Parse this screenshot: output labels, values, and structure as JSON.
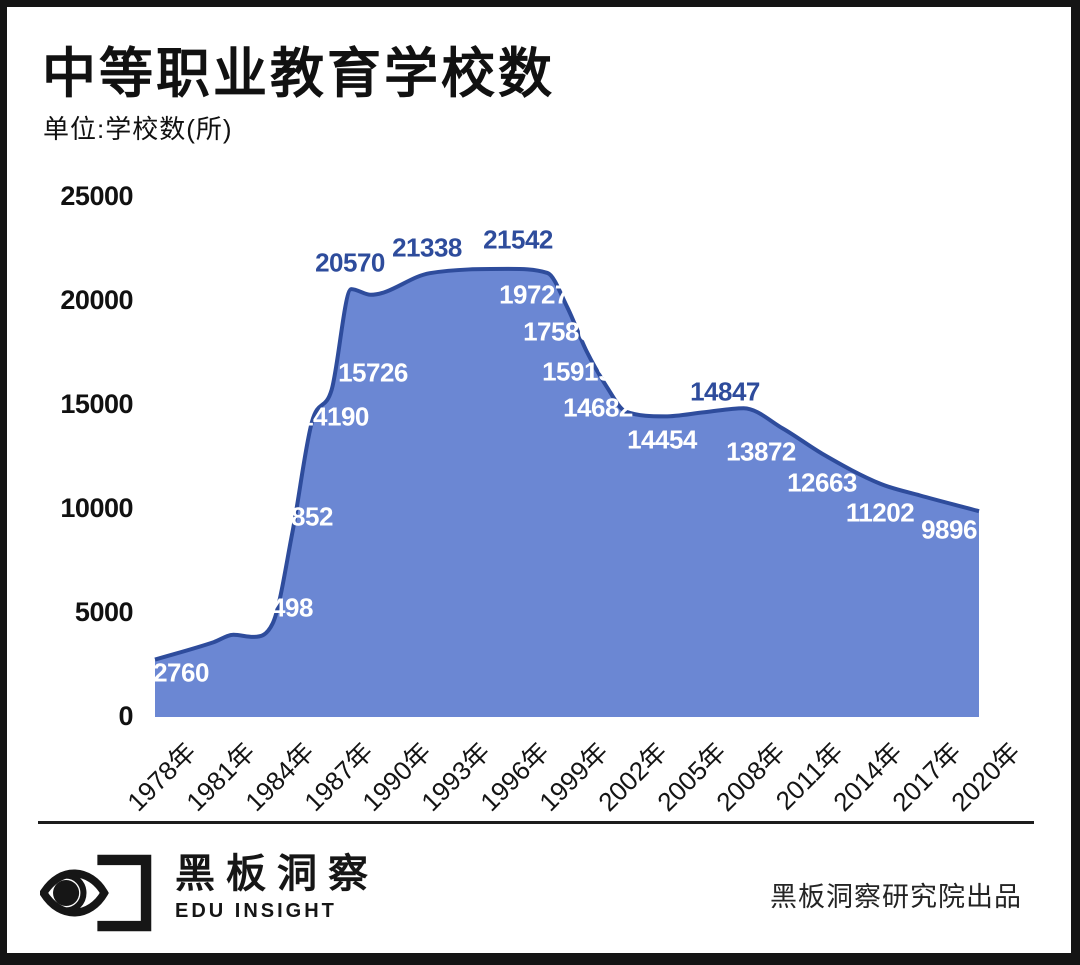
{
  "header": {
    "title": "中等职业教育学校数",
    "subtitle": "单位:学校数(所)"
  },
  "chart_data": {
    "type": "area",
    "title": "中等职业教育学校数",
    "unit_label": "单位:学校数(所)",
    "xlabel": "",
    "ylabel": "学校数(所)",
    "ylim": [
      0,
      25000
    ],
    "y_ticks": [
      0,
      5000,
      10000,
      15000,
      20000,
      25000
    ],
    "x_tick_labels": [
      "1978年",
      "1981年",
      "1984年",
      "1987年",
      "1990年",
      "1993年",
      "1996年",
      "1999年",
      "2002年",
      "2005年",
      "2008年",
      "2011年",
      "2014年",
      "2017年",
      "2020年"
    ],
    "grid": false,
    "legend": false,
    "series": [
      {
        "name": "中等职业教育学校数",
        "points": [
          {
            "year": 1978,
            "value": 2760,
            "labeled": true
          },
          {
            "year": 1981,
            "value": 3600,
            "labeled": false
          },
          {
            "year": 1982,
            "value": 3950,
            "labeled": false
          },
          {
            "year": 1983,
            "value": 3850,
            "labeled": false
          },
          {
            "year": 1984,
            "value": 4498,
            "labeled": true
          },
          {
            "year": 1985,
            "value": 8852,
            "labeled": true
          },
          {
            "year": 1986,
            "value": 14190,
            "labeled": true
          },
          {
            "year": 1987,
            "value": 15726,
            "labeled": true
          },
          {
            "year": 1988,
            "value": 20570,
            "labeled": true
          },
          {
            "year": 1989,
            "value": 20300,
            "labeled": false
          },
          {
            "year": 1992,
            "value": 21338,
            "labeled": true
          },
          {
            "year": 1996,
            "value": 21542,
            "labeled": true
          },
          {
            "year": 1998,
            "value": 21350,
            "labeled": false
          },
          {
            "year": 1999,
            "value": 19727,
            "labeled": true
          },
          {
            "year": 2000,
            "value": 17580,
            "labeled": true
          },
          {
            "year": 2001,
            "value": 15919,
            "labeled": true
          },
          {
            "year": 2002,
            "value": 14682,
            "labeled": true
          },
          {
            "year": 2004,
            "value": 14454,
            "labeled": true
          },
          {
            "year": 2006,
            "value": 14650,
            "labeled": false
          },
          {
            "year": 2008,
            "value": 14847,
            "labeled": true
          },
          {
            "year": 2010,
            "value": 13872,
            "labeled": true
          },
          {
            "year": 2012,
            "value": 12663,
            "labeled": true
          },
          {
            "year": 2015,
            "value": 11202,
            "labeled": true
          },
          {
            "year": 2017,
            "value": 10650,
            "labeled": false
          },
          {
            "year": 2020,
            "value": 9896,
            "labeled": true
          }
        ],
        "dark_label_years": [
          1988,
          1992,
          1996,
          2008
        ]
      }
    ],
    "colors": {
      "area_fill": "#6B87D3",
      "line": "#2E4C9C",
      "label_dark": "#2E4C9C",
      "label_light": "#FFFFFF",
      "axis_text": "#111111"
    }
  },
  "footer": {
    "logo_cn": "黑板洞察",
    "logo_en": "EDU INSIGHT",
    "credit": "黑板洞察研究院出品"
  }
}
